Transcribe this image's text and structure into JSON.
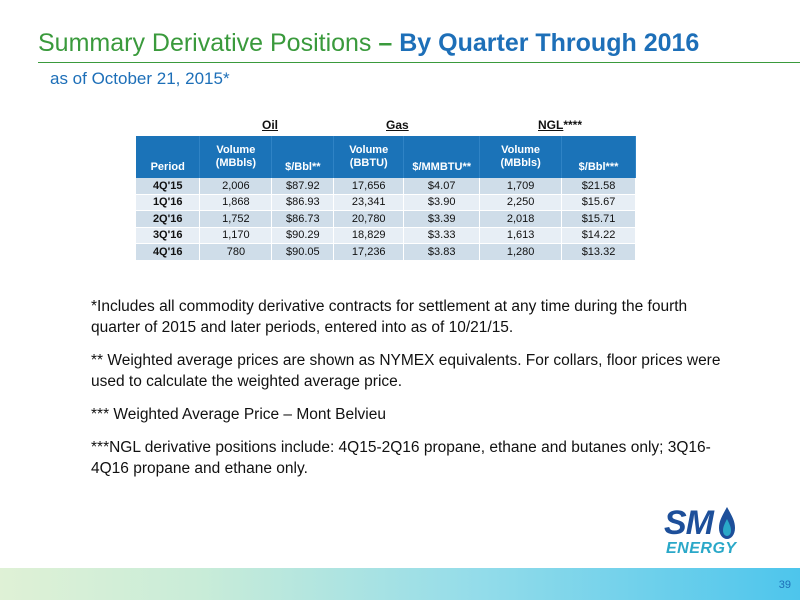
{
  "header": {
    "title_main": "Summary Derivative Positions",
    "title_dash": " – ",
    "title_accent": "By Quarter Through 2016",
    "subtitle": "as of October 21, 2015*"
  },
  "table": {
    "groups": [
      {
        "label": "Oil",
        "suffix": ""
      },
      {
        "label": "Gas",
        "suffix": ""
      },
      {
        "label": "NGL",
        "suffix": "****"
      }
    ],
    "columns": [
      {
        "line1": "",
        "line2": "Period"
      },
      {
        "line1": "Volume",
        "line2": "(MBbls)"
      },
      {
        "line1": "",
        "line2": "$/Bbl**"
      },
      {
        "line1": "Volume",
        "line2": "(BBTU)"
      },
      {
        "line1": "",
        "line2": "$/MMBTU**"
      },
      {
        "line1": "Volume",
        "line2": "(MBbls)"
      },
      {
        "line1": "",
        "line2": "$/Bbl***"
      }
    ],
    "rows": [
      [
        "4Q'15",
        "2,006",
        "$87.92",
        "17,656",
        "$4.07",
        "1,709",
        "$21.58"
      ],
      [
        "1Q'16",
        "1,868",
        "$86.93",
        "23,341",
        "$3.90",
        "2,250",
        "$15.67"
      ],
      [
        "2Q'16",
        "1,752",
        "$86.73",
        "20,780",
        "$3.39",
        "2,018",
        "$15.71"
      ],
      [
        "3Q'16",
        "1,170",
        "$90.29",
        "18,829",
        "$3.33",
        "1,613",
        "$14.22"
      ],
      [
        "4Q'16",
        "780",
        "$90.05",
        "17,236",
        "$3.83",
        "1,280",
        "$13.32"
      ]
    ]
  },
  "notes": [
    "*Includes all commodity derivative contracts for settlement at any time during the fourth quarter of 2015 and later periods, entered into as of 10/21/15.",
    "** Weighted average prices are shown as NYMEX equivalents. For collars, floor prices were used to calculate the weighted average price.",
    "*** Weighted Average Price – Mont Belvieu",
    "***NGL derivative positions include: 4Q15-2Q16 propane, ethane and butanes only; 3Q16-4Q16 propane and ethane only."
  ],
  "logo": {
    "mark": "SM",
    "word": "ENERGY",
    "icon": "flame-icon"
  },
  "footer": {
    "page_number": "39"
  },
  "colors": {
    "title_green": "#3a9a3c",
    "title_blue": "#1d6fb8",
    "table_header": "#1b73b8",
    "row_dark": "#cfdde9",
    "row_light": "#e7eef5"
  }
}
